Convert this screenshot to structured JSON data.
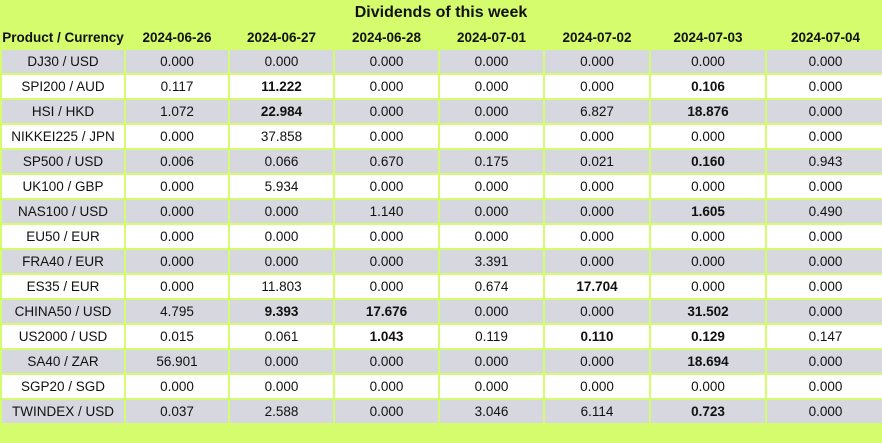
{
  "title": "Dividends of this week",
  "headers": [
    "Product / Currency",
    "2024-06-26",
    "2024-06-27",
    "2024-06-28",
    "2024-07-01",
    "2024-07-02",
    "2024-07-03",
    "2024-07-04"
  ],
  "rows": [
    {
      "product": "DJ30 / USD",
      "values": [
        "0.000",
        "0.000",
        "0.000",
        "0.000",
        "0.000",
        "0.000",
        "0.000"
      ],
      "bold": [
        false,
        false,
        false,
        false,
        false,
        false,
        false
      ]
    },
    {
      "product": "SPI200 / AUD",
      "values": [
        "0.117",
        "11.222",
        "0.000",
        "0.000",
        "0.000",
        "0.106",
        "0.000"
      ],
      "bold": [
        false,
        true,
        false,
        false,
        false,
        true,
        false
      ]
    },
    {
      "product": "HSI / HKD",
      "values": [
        "1.072",
        "22.984",
        "0.000",
        "0.000",
        "6.827",
        "18.876",
        "0.000"
      ],
      "bold": [
        false,
        true,
        false,
        false,
        false,
        true,
        false
      ]
    },
    {
      "product": "NIKKEI225 / JPN",
      "values": [
        "0.000",
        "37.858",
        "0.000",
        "0.000",
        "0.000",
        "0.000",
        "0.000"
      ],
      "bold": [
        false,
        false,
        false,
        false,
        false,
        false,
        false
      ]
    },
    {
      "product": "SP500 / USD",
      "values": [
        "0.006",
        "0.066",
        "0.670",
        "0.175",
        "0.021",
        "0.160",
        "0.943"
      ],
      "bold": [
        false,
        false,
        false,
        false,
        false,
        true,
        false
      ]
    },
    {
      "product": "UK100 / GBP",
      "values": [
        "0.000",
        "5.934",
        "0.000",
        "0.000",
        "0.000",
        "0.000",
        "0.000"
      ],
      "bold": [
        false,
        false,
        false,
        false,
        false,
        false,
        false
      ]
    },
    {
      "product": "NAS100 / USD",
      "values": [
        "0.000",
        "0.000",
        "1.140",
        "0.000",
        "0.000",
        "1.605",
        "0.490"
      ],
      "bold": [
        false,
        false,
        false,
        false,
        false,
        true,
        false
      ]
    },
    {
      "product": "EU50 / EUR",
      "values": [
        "0.000",
        "0.000",
        "0.000",
        "0.000",
        "0.000",
        "0.000",
        "0.000"
      ],
      "bold": [
        false,
        false,
        false,
        false,
        false,
        false,
        false
      ]
    },
    {
      "product": "FRA40 / EUR",
      "values": [
        "0.000",
        "0.000",
        "0.000",
        "3.391",
        "0.000",
        "0.000",
        "0.000"
      ],
      "bold": [
        false,
        false,
        false,
        false,
        false,
        false,
        false
      ]
    },
    {
      "product": "ES35 / EUR",
      "values": [
        "0.000",
        "11.803",
        "0.000",
        "0.674",
        "17.704",
        "0.000",
        "0.000"
      ],
      "bold": [
        false,
        false,
        false,
        false,
        true,
        false,
        false
      ]
    },
    {
      "product": "CHINA50 / USD",
      "values": [
        "4.795",
        "9.393",
        "17.676",
        "0.000",
        "0.000",
        "31.502",
        "0.000"
      ],
      "bold": [
        false,
        true,
        true,
        false,
        false,
        true,
        false
      ]
    },
    {
      "product": "US2000 / USD",
      "values": [
        "0.015",
        "0.061",
        "1.043",
        "0.119",
        "0.110",
        "0.129",
        "0.147"
      ],
      "bold": [
        false,
        false,
        true,
        false,
        true,
        true,
        false
      ]
    },
    {
      "product": "SA40 / ZAR",
      "values": [
        "56.901",
        "0.000",
        "0.000",
        "0.000",
        "0.000",
        "18.694",
        "0.000"
      ],
      "bold": [
        false,
        false,
        false,
        false,
        false,
        true,
        false
      ]
    },
    {
      "product": "SGP20 / SGD",
      "values": [
        "0.000",
        "0.000",
        "0.000",
        "0.000",
        "0.000",
        "0.000",
        "0.000"
      ],
      "bold": [
        false,
        false,
        false,
        false,
        false,
        false,
        false
      ]
    },
    {
      "product": "TWINDEX / USD",
      "values": [
        "0.037",
        "2.588",
        "0.000",
        "3.046",
        "6.114",
        "0.723",
        "0.000"
      ],
      "bold": [
        false,
        false,
        false,
        false,
        false,
        true,
        false
      ]
    }
  ],
  "colors": {
    "header_bg": "#d4fc6c",
    "row_odd": "#d6d7df",
    "row_even": "#ffffff"
  }
}
